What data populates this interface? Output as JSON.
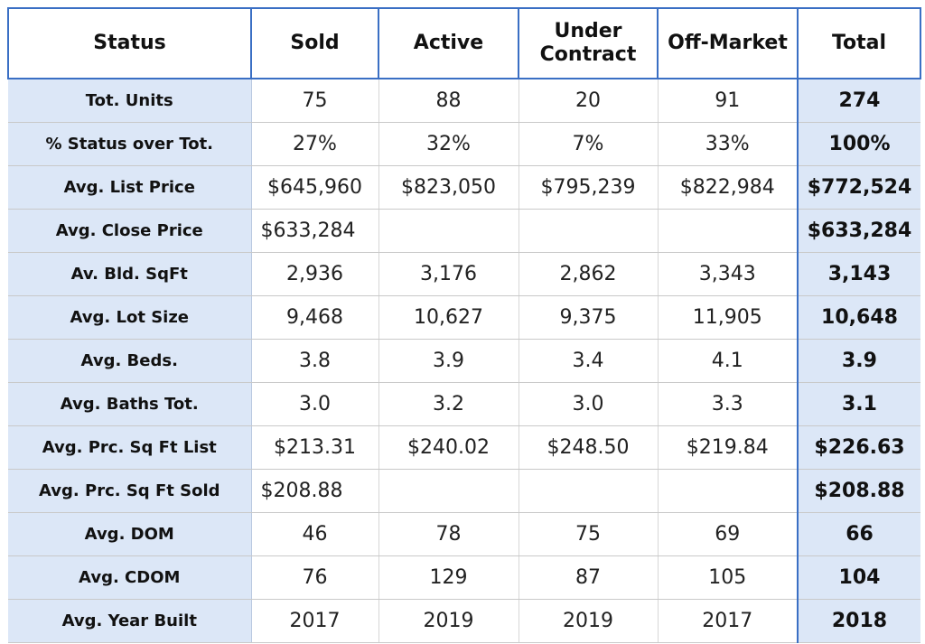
{
  "table": {
    "header": [
      "Status",
      "Sold",
      "Active",
      "Under Contract",
      "Off-Market",
      "Total"
    ],
    "rows": [
      [
        "Tot. Units",
        "75",
        "88",
        "20",
        "91",
        "274"
      ],
      [
        "% Status over Tot.",
        "27%",
        "32%",
        "7%",
        "33%",
        "100%"
      ],
      [
        "Avg. List Price",
        "$645,960",
        "$823,050",
        "$795,239",
        "$822,984",
        "$772,524"
      ],
      [
        "Avg. Close Price",
        "$633,284",
        null,
        null,
        null,
        "$633,284"
      ],
      [
        "Av. Bld. SqFt",
        "2,936",
        "3,176",
        "2,862",
        "3,343",
        "3,143"
      ],
      [
        "Avg. Lot Size",
        "9,468",
        "10,627",
        "9,375",
        "11,905",
        "10,648"
      ],
      [
        "Avg. Beds.",
        "3.8",
        "3.9",
        "3.4",
        "4.1",
        "3.9"
      ],
      [
        "Avg. Baths Tot.",
        "3.0",
        "3.2",
        "3.0",
        "3.3",
        "3.1"
      ],
      [
        "Avg. Prc. Sq Ft List",
        "$213.31",
        "$240.02",
        "$248.50",
        "$219.84",
        "$226.63"
      ],
      [
        "Avg. Prc. Sq Ft Sold",
        "$208.88",
        null,
        null,
        null,
        "$208.88"
      ],
      [
        "Avg. DOM",
        "46",
        "78",
        "75",
        "69",
        "66"
      ],
      [
        "Avg. CDOM",
        "76",
        "129",
        "87",
        "105",
        "104"
      ],
      [
        "Avg. Year Built",
        "2017",
        "2019",
        "2019",
        "2017",
        "2018"
      ]
    ]
  }
}
